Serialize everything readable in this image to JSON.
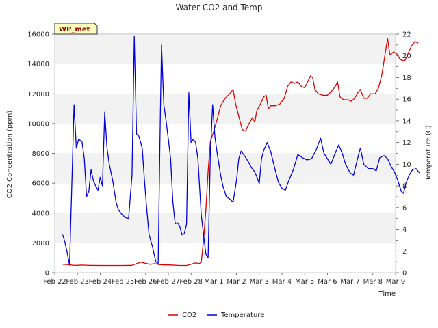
{
  "chart_data": {
    "type": "line",
    "title": "Water CO2 and Temp",
    "badge": "WP_met",
    "xlabel": "Time",
    "ylabel_left": "CO2 Concentration (ppm)",
    "ylabel_right": "Temperature (C)",
    "x_ticks": [
      "Feb 22",
      "Feb 23",
      "Feb 24",
      "Feb 25",
      "Feb 26",
      "Feb 27",
      "Feb 28",
      "Mar 1",
      "Mar 2",
      "Mar 3",
      "Mar 4",
      "Mar 5",
      "Mar 6",
      "Mar 7",
      "Mar 8",
      "Mar 9"
    ],
    "xlim_days": [
      0,
      15
    ],
    "ylim_left": [
      0,
      16000
    ],
    "ylim_right": [
      0,
      22
    ],
    "y_ticks_left": [
      0,
      2000,
      4000,
      6000,
      8000,
      10000,
      12000,
      14000,
      16000
    ],
    "y_ticks_right": [
      0,
      2,
      4,
      6,
      8,
      10,
      12,
      14,
      16,
      18,
      20,
      22
    ],
    "bands": "alternating light-gray horizontal bands every 2000 ppm",
    "legend_position": "bottom-center",
    "series": [
      {
        "name": "CO2",
        "axis": "left",
        "color": "#dd0000",
        "points": [
          [
            0.35,
            560
          ],
          [
            0.6,
            540
          ],
          [
            0.8,
            500
          ],
          [
            1.0,
            490
          ],
          [
            1.2,
            510
          ],
          [
            1.5,
            490
          ],
          [
            2.0,
            480
          ],
          [
            2.5,
            480
          ],
          [
            3.0,
            480
          ],
          [
            3.4,
            490
          ],
          [
            3.6,
            600
          ],
          [
            3.8,
            700
          ],
          [
            4.0,
            620
          ],
          [
            4.2,
            560
          ],
          [
            4.4,
            600
          ],
          [
            4.6,
            540
          ],
          [
            4.8,
            520
          ],
          [
            5.0,
            520
          ],
          [
            5.3,
            500
          ],
          [
            5.5,
            480
          ],
          [
            5.8,
            480
          ],
          [
            6.0,
            560
          ],
          [
            6.2,
            650
          ],
          [
            6.35,
            600
          ],
          [
            6.45,
            700
          ],
          [
            6.55,
            2200
          ],
          [
            6.65,
            4200
          ],
          [
            6.75,
            6800
          ],
          [
            6.85,
            8800
          ],
          [
            7.0,
            9500
          ],
          [
            7.15,
            10300
          ],
          [
            7.3,
            11200
          ],
          [
            7.5,
            11700
          ],
          [
            7.7,
            12000
          ],
          [
            7.85,
            12300
          ],
          [
            7.95,
            11400
          ],
          [
            8.1,
            10500
          ],
          [
            8.25,
            9600
          ],
          [
            8.4,
            9500
          ],
          [
            8.55,
            10000
          ],
          [
            8.7,
            10400
          ],
          [
            8.8,
            10100
          ],
          [
            8.9,
            10900
          ],
          [
            9.05,
            11300
          ],
          [
            9.2,
            11800
          ],
          [
            9.3,
            11900
          ],
          [
            9.4,
            11000
          ],
          [
            9.5,
            11200
          ],
          [
            9.7,
            11200
          ],
          [
            9.9,
            11300
          ],
          [
            10.1,
            11700
          ],
          [
            10.25,
            12500
          ],
          [
            10.4,
            12800
          ],
          [
            10.55,
            12700
          ],
          [
            10.7,
            12800
          ],
          [
            10.85,
            12500
          ],
          [
            11.0,
            12400
          ],
          [
            11.1,
            12700
          ],
          [
            11.25,
            13200
          ],
          [
            11.35,
            13100
          ],
          [
            11.45,
            12300
          ],
          [
            11.6,
            12000
          ],
          [
            11.8,
            11900
          ],
          [
            12.0,
            11900
          ],
          [
            12.2,
            12200
          ],
          [
            12.35,
            12500
          ],
          [
            12.45,
            12800
          ],
          [
            12.55,
            11800
          ],
          [
            12.7,
            11600
          ],
          [
            12.9,
            11600
          ],
          [
            13.05,
            11500
          ],
          [
            13.2,
            11700
          ],
          [
            13.35,
            12100
          ],
          [
            13.45,
            12300
          ],
          [
            13.6,
            11700
          ],
          [
            13.75,
            11700
          ],
          [
            13.9,
            12000
          ],
          [
            14.1,
            12000
          ],
          [
            14.25,
            12400
          ],
          [
            14.4,
            13300
          ],
          [
            14.55,
            14800
          ],
          [
            14.65,
            15700
          ],
          [
            14.75,
            14600
          ],
          [
            14.9,
            14800
          ],
          [
            15.05,
            14700
          ],
          [
            15.2,
            14300
          ],
          [
            15.4,
            14200
          ],
          [
            15.55,
            14700
          ],
          [
            15.7,
            15200
          ],
          [
            15.85,
            15500
          ],
          [
            16.0,
            15400
          ]
        ]
      },
      {
        "name": "Temperature",
        "axis": "right",
        "color": "#0000dd",
        "points": [
          [
            0.35,
            3.5
          ],
          [
            0.45,
            2.8
          ],
          [
            0.55,
            1.8
          ],
          [
            0.65,
            0.7
          ],
          [
            0.75,
            8
          ],
          [
            0.85,
            15.5
          ],
          [
            0.95,
            11.5
          ],
          [
            1.05,
            12.3
          ],
          [
            1.2,
            12.1
          ],
          [
            1.3,
            10.5
          ],
          [
            1.4,
            7
          ],
          [
            1.5,
            7.5
          ],
          [
            1.6,
            9.5
          ],
          [
            1.7,
            8.5
          ],
          [
            1.8,
            8
          ],
          [
            1.9,
            7.6
          ],
          [
            2.0,
            8.8
          ],
          [
            2.1,
            8.0
          ],
          [
            2.2,
            14.8
          ],
          [
            2.3,
            11.5
          ],
          [
            2.4,
            10
          ],
          [
            2.55,
            8.5
          ],
          [
            2.7,
            6.5
          ],
          [
            2.8,
            5.8
          ],
          [
            2.95,
            5.4
          ],
          [
            3.1,
            5.1
          ],
          [
            3.25,
            5.0
          ],
          [
            3.4,
            9
          ],
          [
            3.5,
            21.8
          ],
          [
            3.6,
            12.8
          ],
          [
            3.7,
            12.6
          ],
          [
            3.85,
            11.5
          ],
          [
            3.95,
            8.5
          ],
          [
            4.05,
            5.8
          ],
          [
            4.15,
            3.5
          ],
          [
            4.3,
            2.4
          ],
          [
            4.45,
            1.0
          ],
          [
            4.55,
            0.8
          ],
          [
            4.65,
            15
          ],
          [
            4.7,
            21
          ],
          [
            4.8,
            15.5
          ],
          [
            4.9,
            14
          ],
          [
            5.0,
            12.3
          ],
          [
            5.1,
            10.5
          ],
          [
            5.2,
            6.5
          ],
          [
            5.3,
            4.5
          ],
          [
            5.4,
            4.6
          ],
          [
            5.5,
            4.3
          ],
          [
            5.6,
            3.5
          ],
          [
            5.7,
            3.6
          ],
          [
            5.8,
            4.5
          ],
          [
            5.9,
            16.6
          ],
          [
            6.0,
            12.0
          ],
          [
            6.1,
            12.3
          ],
          [
            6.2,
            12.0
          ],
          [
            6.3,
            10.5
          ],
          [
            6.45,
            5.3
          ],
          [
            6.55,
            3.5
          ],
          [
            6.65,
            1.7
          ],
          [
            6.75,
            1.4
          ],
          [
            6.85,
            11
          ],
          [
            6.95,
            15.5
          ],
          [
            7.05,
            12.5
          ],
          [
            7.15,
            11.0
          ],
          [
            7.3,
            9.0
          ],
          [
            7.4,
            8.0
          ],
          [
            7.55,
            7.0
          ],
          [
            7.7,
            6.8
          ],
          [
            7.85,
            6.5
          ],
          [
            8.0,
            8.5
          ],
          [
            8.1,
            10.5
          ],
          [
            8.2,
            11.2
          ],
          [
            8.35,
            10.8
          ],
          [
            8.5,
            10.3
          ],
          [
            8.65,
            9.7
          ],
          [
            8.8,
            9.3
          ],
          [
            8.9,
            8.8
          ],
          [
            9.0,
            8.2
          ],
          [
            9.1,
            10.5
          ],
          [
            9.2,
            11.3
          ],
          [
            9.35,
            12.0
          ],
          [
            9.5,
            11.2
          ],
          [
            9.7,
            9.5
          ],
          [
            9.85,
            8.3
          ],
          [
            10.0,
            7.8
          ],
          [
            10.15,
            7.6
          ],
          [
            10.3,
            8.5
          ],
          [
            10.5,
            9.5
          ],
          [
            10.7,
            10.9
          ],
          [
            10.9,
            10.6
          ],
          [
            11.1,
            10.4
          ],
          [
            11.3,
            10.5
          ],
          [
            11.5,
            11.3
          ],
          [
            11.7,
            12.4
          ],
          [
            11.85,
            11.0
          ],
          [
            12.0,
            10.5
          ],
          [
            12.15,
            10.0
          ],
          [
            12.3,
            10.8
          ],
          [
            12.5,
            11.8
          ],
          [
            12.65,
            11.0
          ],
          [
            12.8,
            10.0
          ],
          [
            13.0,
            9.2
          ],
          [
            13.15,
            9.0
          ],
          [
            13.3,
            10.3
          ],
          [
            13.45,
            11.5
          ],
          [
            13.6,
            10.0
          ],
          [
            13.8,
            9.6
          ],
          [
            14.0,
            9.6
          ],
          [
            14.15,
            9.4
          ],
          [
            14.3,
            10.6
          ],
          [
            14.5,
            10.8
          ],
          [
            14.65,
            10.5
          ],
          [
            14.8,
            9.8
          ],
          [
            14.95,
            9.3
          ],
          [
            15.1,
            8.5
          ],
          [
            15.25,
            7.5
          ],
          [
            15.35,
            7.3
          ],
          [
            15.45,
            8.2
          ],
          [
            15.6,
            9.0
          ],
          [
            15.75,
            9.5
          ],
          [
            15.9,
            9.6
          ],
          [
            16.05,
            9.2
          ]
        ]
      }
    ]
  }
}
